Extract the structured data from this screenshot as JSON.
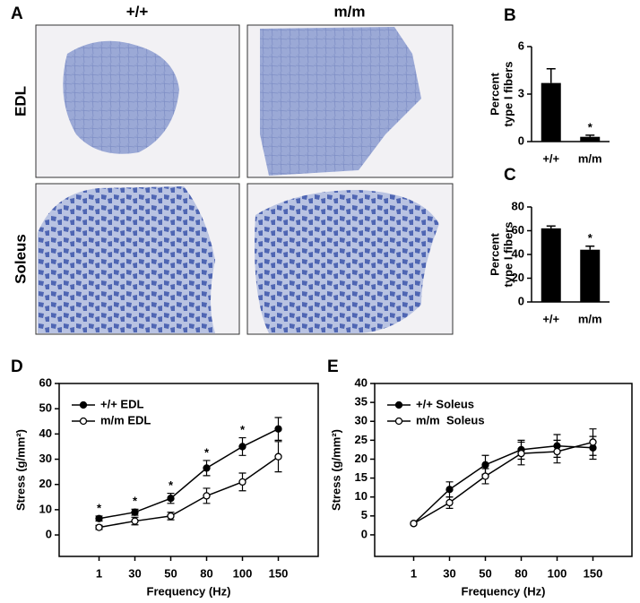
{
  "panel_a": {
    "panel_label": "A",
    "columns": [
      "+/+",
      "m/m"
    ],
    "rows": [
      "EDL",
      "Soleus"
    ]
  },
  "chart_data": [
    {
      "type": "bar",
      "panel_label": "B",
      "ylabel": [
        "Percent",
        "type I fibers"
      ],
      "categories": [
        "+/+",
        "m/m"
      ],
      "values": [
        3.7,
        0.3
      ],
      "errors": [
        0.9,
        0.1
      ],
      "significance": [
        null,
        "*"
      ],
      "color": "#000000",
      "ylim": [
        0,
        6
      ],
      "yticks": [
        0,
        3,
        6
      ]
    },
    {
      "type": "bar",
      "panel_label": "C",
      "ylabel": [
        "Percent",
        "type I fibers"
      ],
      "categories": [
        "+/+",
        "m/m"
      ],
      "values": [
        62,
        44
      ],
      "errors": [
        2,
        3
      ],
      "significance": [
        null,
        "*"
      ],
      "color": "#000000",
      "ylim": [
        0,
        80
      ],
      "yticks": [
        0,
        20,
        40,
        60,
        80
      ]
    },
    {
      "type": "line",
      "panel_label": "D",
      "xlabel": "Frequency (Hz)",
      "ylabel": "Stress (g/mm²)",
      "categories": [
        "1",
        "30",
        "50",
        "80",
        "100",
        "150"
      ],
      "series": [
        {
          "name": "+/+ EDL",
          "color": "#000000",
          "marker_fill": "#000000",
          "values": [
            6.5,
            9,
            14.5,
            26.5,
            35,
            42
          ],
          "errors": [
            1,
            1.2,
            2,
            3,
            3.5,
            4.5
          ],
          "significance": [
            "*",
            "*",
            "*",
            "*",
            "*",
            null
          ]
        },
        {
          "name": "m/m EDL",
          "color": "#000000",
          "marker_fill": "#ffffff",
          "values": [
            3,
            5.5,
            7.5,
            15.5,
            21,
            31
          ],
          "errors": [
            0.8,
            1.5,
            1.5,
            3,
            3.5,
            6
          ]
        }
      ],
      "ylim": [
        -8.5,
        60
      ],
      "yticks": [
        0,
        10,
        20,
        30,
        40,
        50,
        60
      ],
      "legend": "upper left"
    },
    {
      "type": "line",
      "panel_label": "E",
      "xlabel": "Frequency (Hz)",
      "ylabel": "Stress (g/mm²)",
      "categories": [
        "1",
        "30",
        "50",
        "80",
        "100",
        "150"
      ],
      "series": [
        {
          "name": "+/+ Soleus",
          "color": "#000000",
          "marker_fill": "#000000",
          "values": [
            3,
            12,
            18.5,
            22.5,
            23.5,
            23
          ],
          "errors": [
            0.3,
            2,
            2.5,
            2.5,
            3,
            3
          ]
        },
        {
          "name": "m/m  Soleus",
          "color": "#000000",
          "marker_fill": "#ffffff",
          "values": [
            3,
            8.5,
            15.5,
            21.5,
            22,
            24.5
          ],
          "errors": [
            0.3,
            1.5,
            2,
            3,
            3,
            3.5
          ]
        }
      ],
      "ylim": [
        -5.7,
        40
      ],
      "yticks": [
        0,
        5,
        10,
        15,
        20,
        25,
        30,
        35,
        40
      ],
      "legend": "upper left"
    }
  ]
}
